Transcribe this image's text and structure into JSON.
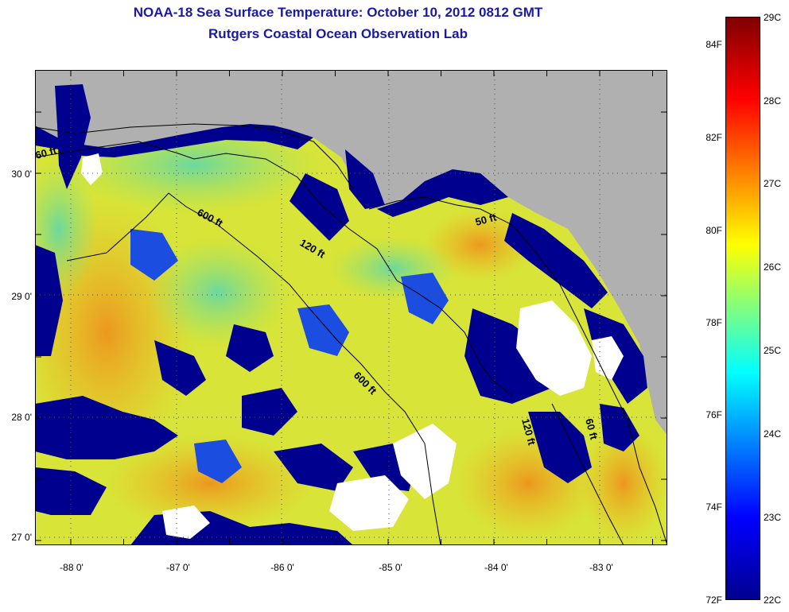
{
  "title": "NOAA-18 Sea Surface Temperature:  October 10, 2012 0812 GMT",
  "subtitle": "Rutgers Coastal Ocean Observation Lab",
  "map": {
    "lat_labels": [
      "30 0'",
      "29 0'",
      "28 0'",
      "27 0'"
    ],
    "lon_labels": [
      "-88 0'",
      "-87 0'",
      "-86 0'",
      "-85 0'",
      "-84 0'",
      "-83 0'"
    ],
    "isobath_labels": [
      "60 ft",
      "600 ft",
      "120 ft",
      "50 ft",
      "600 ft",
      "120 ft",
      "60 ft"
    ],
    "colors": {
      "land": "#b0b0b0",
      "cloud": "#ffffff",
      "cold_water": "#00008f"
    }
  },
  "colorbar": {
    "fahrenheit": [
      "84F",
      "82F",
      "80F",
      "78F",
      "76F",
      "74F",
      "72F"
    ],
    "celsius": [
      "29C",
      "28C",
      "27C",
      "26C",
      "25C",
      "24C",
      "23C",
      "22C"
    ],
    "colors": [
      "#00008f",
      "#0000ff",
      "#00ffff",
      "#ffff00",
      "#ff0000",
      "#800000"
    ]
  }
}
